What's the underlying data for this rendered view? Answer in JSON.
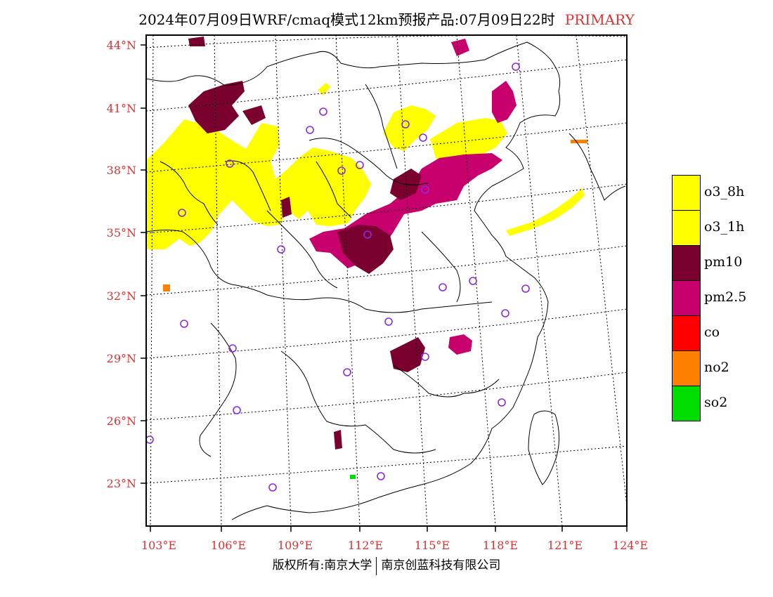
{
  "title": {
    "text": "2024年07月09日WRF/cmaq模式12km预报产品:07月09日22时",
    "tag": "PRIMARY"
  },
  "axes": {
    "lat_labels": [
      "44°N",
      "41°N",
      "38°N",
      "35°N",
      "32°N",
      "29°N",
      "26°N",
      "23°N"
    ],
    "lon_labels": [
      "103°E",
      "106°E",
      "109°E",
      "112°E",
      "115°E",
      "118°E",
      "121°E",
      "124°E"
    ]
  },
  "legend": [
    {
      "label": "o3_8h",
      "color": "#ffff00"
    },
    {
      "label": "o3_1h",
      "color": "#ffff00"
    },
    {
      "label": "pm10",
      "color": "#7a0030"
    },
    {
      "label": "pm2.5",
      "color": "#c8006e"
    },
    {
      "label": "co",
      "color": "#ff0000"
    },
    {
      "label": "no2",
      "color": "#ff7f00"
    },
    {
      "label": "so2",
      "color": "#00dd00"
    }
  ],
  "copyright": {
    "left": "版权所有:南京大学",
    "right": "南京创蓝科技有限公司"
  },
  "colors": {
    "label_red": "#e03030",
    "station_marker": "#8a2be2"
  }
}
